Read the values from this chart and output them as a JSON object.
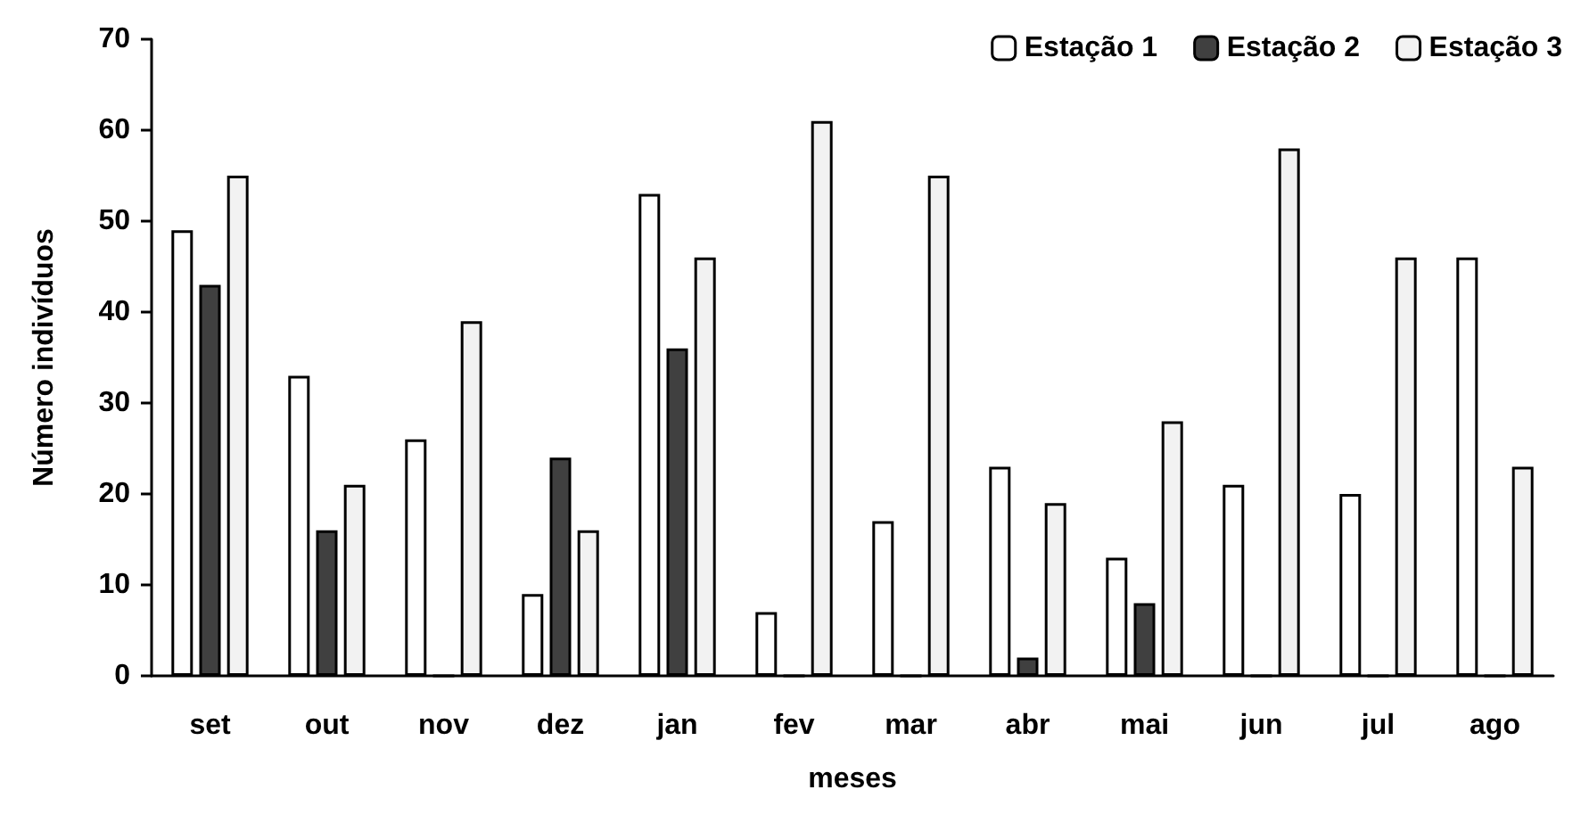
{
  "chart_data": {
    "type": "bar",
    "xlabel": "meses",
    "ylabel": "Número indivíduos",
    "categories": [
      "set",
      "out",
      "nov",
      "dez",
      "jan",
      "fev",
      "mar",
      "abr",
      "mai",
      "jun",
      "jul",
      "ago"
    ],
    "series": [
      {
        "name": "Estação 1",
        "color": "#ffffff",
        "values": [
          49,
          33,
          26,
          9,
          53,
          7,
          17,
          23,
          13,
          21,
          20,
          46
        ]
      },
      {
        "name": "Estação 2",
        "color": "#404040",
        "values": [
          43,
          16,
          0,
          24,
          36,
          0,
          0,
          2,
          8,
          0,
          0,
          0
        ]
      },
      {
        "name": "Estação 3",
        "color": "#f2f2f2",
        "values": [
          55,
          21,
          39,
          16,
          46,
          61,
          55,
          19,
          28,
          58,
          46,
          23
        ]
      }
    ],
    "ylim": [
      0,
      70
    ],
    "yticks": [
      0,
      10,
      20,
      30,
      40,
      50,
      60,
      70
    ],
    "grid": false,
    "legend": "top right"
  }
}
